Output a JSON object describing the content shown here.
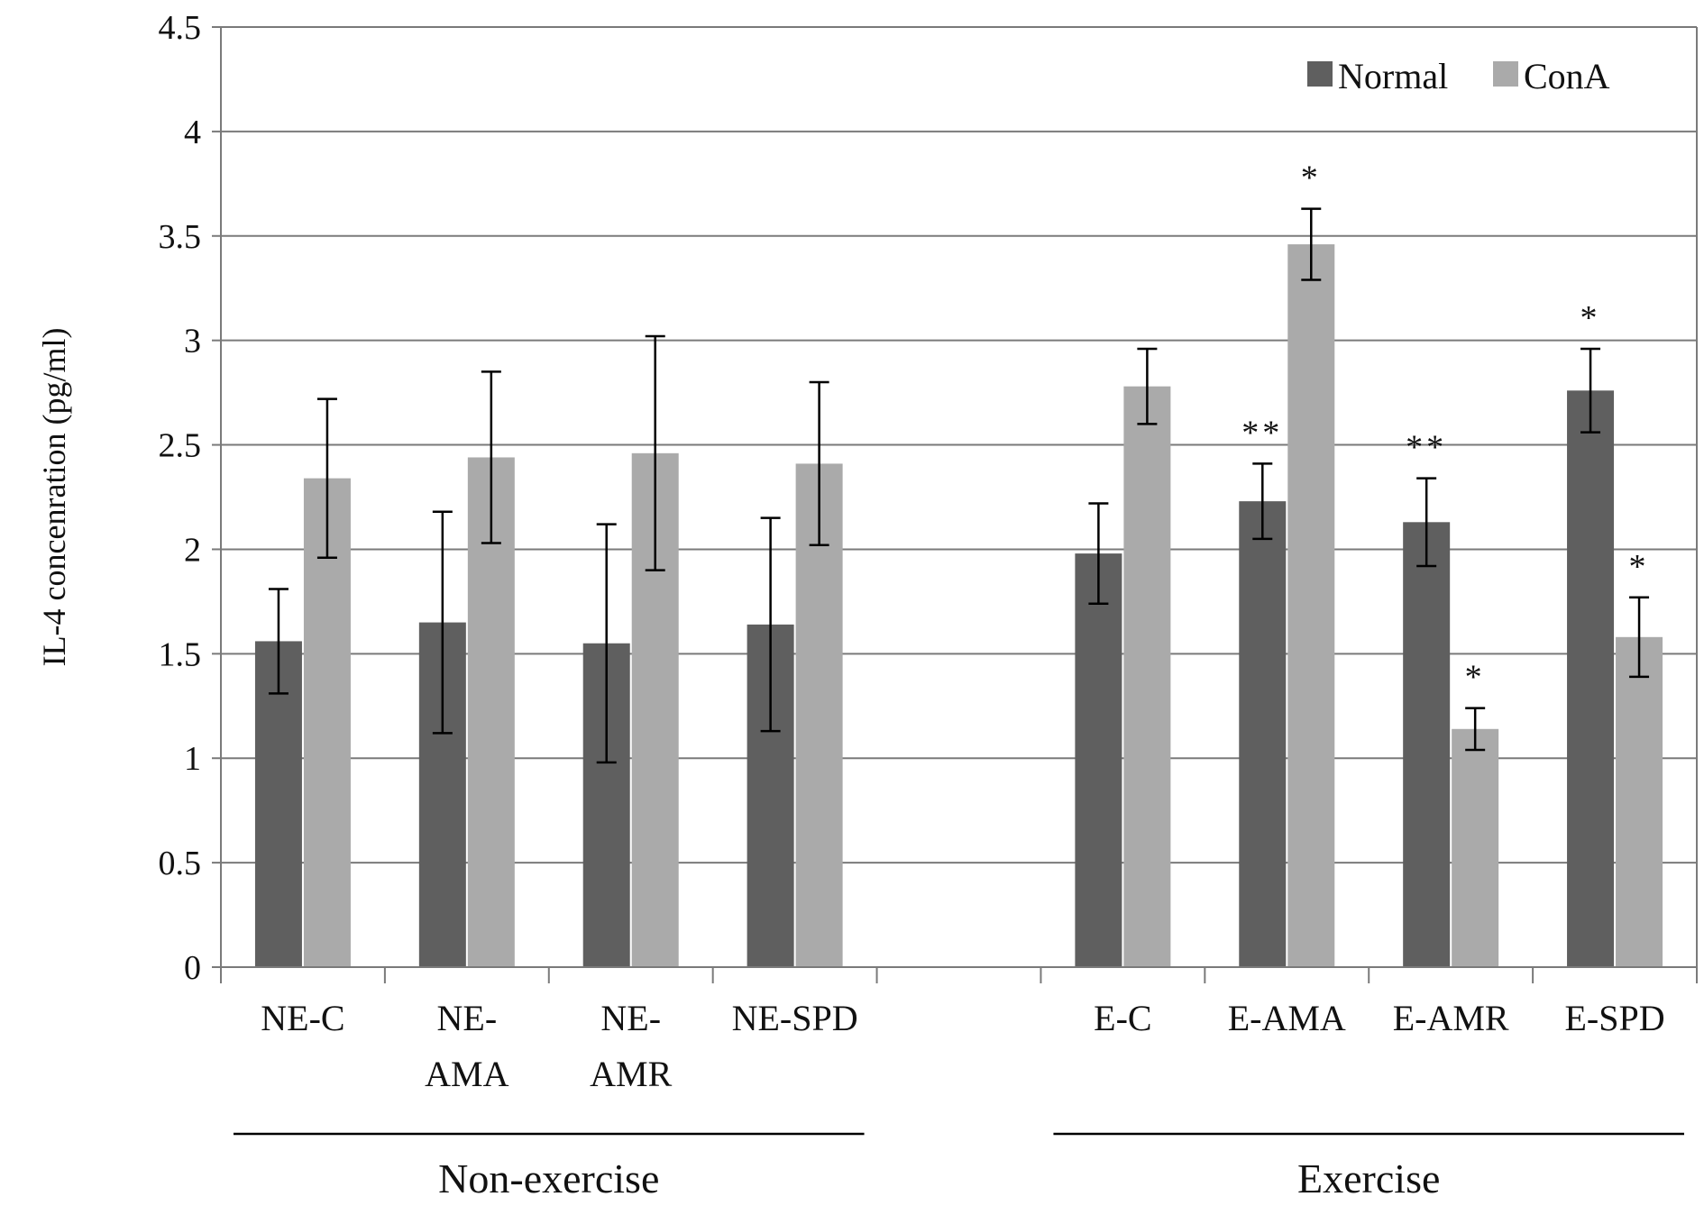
{
  "chart_data": {
    "type": "bar",
    "title": "",
    "ylabel": "IL-4 concenration (pg/ml)",
    "xlabel": "",
    "ylim": [
      0,
      4.5
    ],
    "ytick_step": 0.5,
    "ytick_labels": [
      "0",
      "0.5",
      "1",
      "1.5",
      "2",
      "2.5",
      "3",
      "3.5",
      "4",
      "4.5"
    ],
    "grid": true,
    "legend_position": "top-right",
    "categories": [
      [
        "NE-C"
      ],
      [
        "NE-",
        "AMA"
      ],
      [
        "NE-",
        "AMR"
      ],
      [
        "NE-SPD"
      ],
      [],
      [
        "E-C"
      ],
      [
        "E-AMA"
      ],
      [
        "E-AMR"
      ],
      [
        "E-SPD"
      ]
    ],
    "series": [
      {
        "name": "Normal",
        "color": "#5f5f5f",
        "values": [
          1.56,
          1.65,
          1.55,
          1.64,
          null,
          1.98,
          2.23,
          2.13,
          2.76
        ],
        "errors": [
          0.25,
          0.53,
          0.57,
          0.51,
          null,
          0.24,
          0.18,
          0.21,
          0.2
        ],
        "annotations": [
          "",
          "",
          "",
          "",
          "",
          "",
          "**",
          "**",
          "*"
        ]
      },
      {
        "name": "ConA",
        "color": "#aaaaaa",
        "values": [
          2.34,
          2.44,
          2.46,
          2.41,
          null,
          2.78,
          3.46,
          1.14,
          1.58
        ],
        "errors": [
          0.38,
          0.41,
          0.56,
          0.39,
          null,
          0.18,
          0.17,
          0.1,
          0.19
        ],
        "annotations": [
          "",
          "",
          "",
          "",
          "",
          "",
          "*",
          "*",
          "*"
        ]
      }
    ],
    "group_labels": [
      {
        "label": "Non-exercise",
        "from": 0,
        "to": 3
      },
      {
        "label": "Exercise",
        "from": 5,
        "to": 8
      }
    ]
  }
}
